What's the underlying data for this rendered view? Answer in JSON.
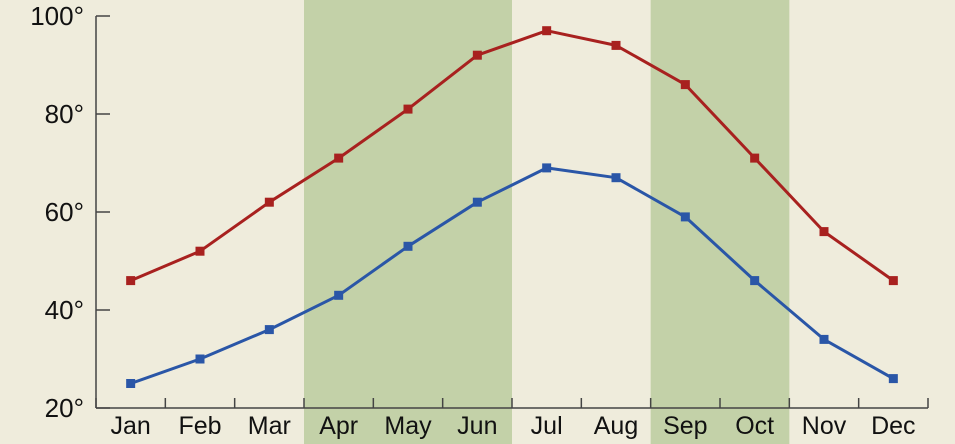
{
  "chart_data": {
    "type": "line",
    "categories": [
      "Jan",
      "Feb",
      "Mar",
      "Apr",
      "May",
      "Jun",
      "Jul",
      "Aug",
      "Sep",
      "Oct",
      "Nov",
      "Dec"
    ],
    "series": [
      {
        "values": [
          46,
          52,
          62,
          71,
          81,
          92,
          97,
          94,
          86,
          71,
          56,
          46
        ],
        "color": "#a8211f"
      },
      {
        "values": [
          25,
          30,
          36,
          43,
          53,
          62,
          69,
          67,
          59,
          46,
          34,
          26
        ],
        "color": "#2a56a7"
      }
    ],
    "y_ticks": [
      "20°",
      "40°",
      "60°",
      "80°",
      "100°"
    ],
    "y_tick_values": [
      20,
      40,
      60,
      80,
      100
    ],
    "ylim": [
      20,
      100
    ],
    "highlight_bands": [
      {
        "from": "Apr",
        "to": "Jun",
        "color": "#c3d1a8"
      },
      {
        "from": "Sep",
        "to": "Oct",
        "color": "#c3d1a8"
      }
    ],
    "background_color": "#efecdc",
    "grid": false
  }
}
